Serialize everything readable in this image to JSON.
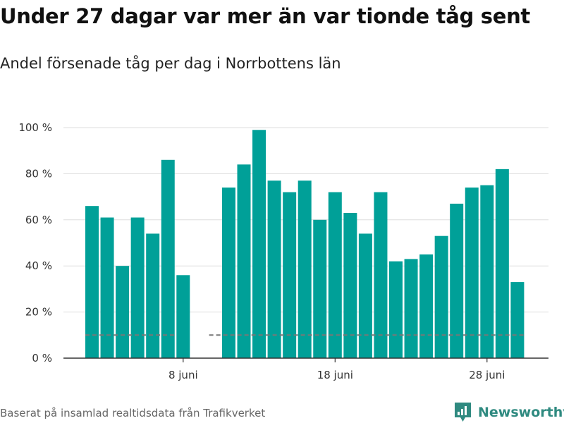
{
  "title": "Under 27 dagar var mer än var tionde tåg sent",
  "subtitle": "Andel försenade tåg per dag i Norrbottens län",
  "footer": "Baserat på insamlad realtidsdata från Trafikverket",
  "brand": {
    "name": "Newsworthy",
    "icon": "newsworthy-logo-icon",
    "color": "#2f8a80"
  },
  "colors": {
    "bar": "#00a098",
    "threshold": "#777777",
    "grid": "#dddddd",
    "axis": "#333333"
  },
  "chart_data": {
    "type": "bar",
    "title": "Under 27 dagar var mer än var tionde tåg sent",
    "subtitle": "Andel försenade tåg per dag i Norrbottens län",
    "xlabel": "",
    "ylabel": "",
    "x": [
      "2 juni",
      "3 juni",
      "4 juni",
      "5 juni",
      "6 juni",
      "7 juni",
      "8 juni",
      "9 juni",
      "10 juni",
      "11 juni",
      "12 juni",
      "13 juni",
      "14 juni",
      "15 juni",
      "16 juni",
      "17 juni",
      "18 juni",
      "19 juni",
      "20 juni",
      "21 juni",
      "22 juni",
      "23 juni",
      "24 juni",
      "25 juni",
      "26 juni",
      "27 juni",
      "28 juni",
      "29 juni",
      "30 juni"
    ],
    "values": [
      66,
      61,
      40,
      61,
      54,
      86,
      36,
      null,
      null,
      74,
      84,
      99,
      77,
      72,
      77,
      60,
      72,
      63,
      54,
      72,
      42,
      43,
      45,
      53,
      67,
      74,
      75,
      82,
      33
    ],
    "threshold": {
      "value": 10,
      "style": "dashed",
      "gap_from": "8 juni",
      "gap_to": "10 juni"
    },
    "ylim": [
      0,
      100
    ],
    "yticks": [
      0,
      20,
      40,
      60,
      80,
      100
    ],
    "ytick_labels": [
      "0 %",
      "20 %",
      "40 %",
      "60 %",
      "80 %",
      "100 %"
    ],
    "xticks": [
      "8 juni",
      "18 juni",
      "28 juni"
    ],
    "grid": true,
    "legend": "none"
  }
}
